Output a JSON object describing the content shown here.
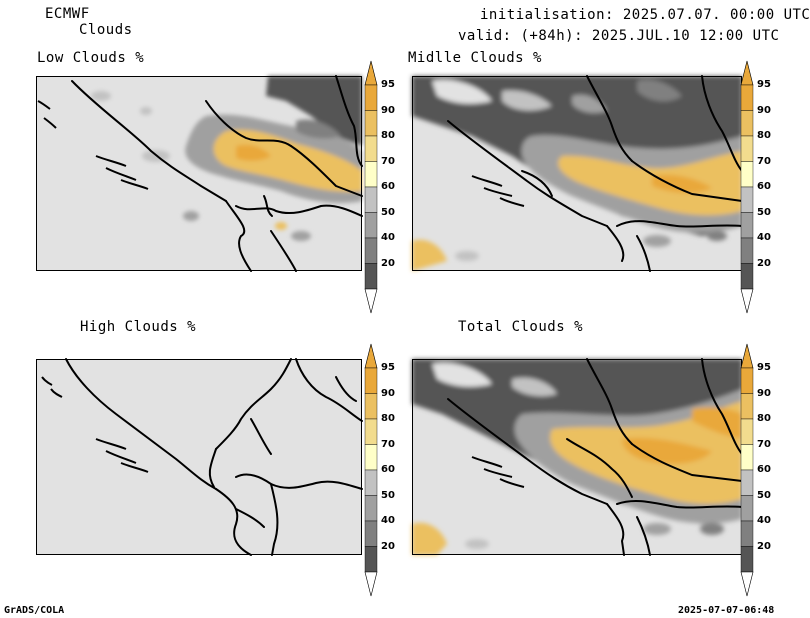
{
  "header": {
    "model": "ECMWF",
    "product": "Clouds",
    "init": "initialisation: 2025.07.07. 00:00 UTC",
    "valid": "valid: (+84h): 2025.JUL.10 12:00 UTC"
  },
  "panels": [
    {
      "title": "Low Clouds %"
    },
    {
      "title": "Midlle Clouds %"
    },
    {
      "title": "High Clouds %"
    },
    {
      "title": "Total Clouds %"
    }
  ],
  "colorbar": {
    "levels": [
      "20",
      "40",
      "50",
      "60",
      "70",
      "80",
      "90",
      "95"
    ],
    "colors": [
      "#555555",
      "#808080",
      "#a0a0a0",
      "#c2c2c2",
      "#ffffc8",
      "#f2dc8e",
      "#ebc061",
      "#e9a83a"
    ],
    "under_color": "#ffffff",
    "over_color": "#e9a83a"
  },
  "footer": {
    "left": "GrADS/COLA",
    "right": "2025-07-07-06:48"
  },
  "map_colors": {
    "land_clear": "#e2e2e2",
    "border": "#000000"
  }
}
